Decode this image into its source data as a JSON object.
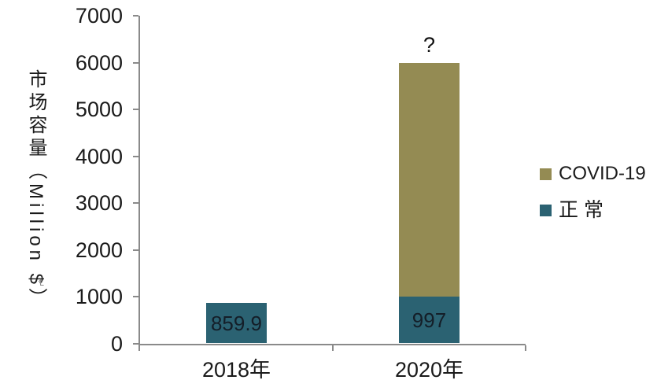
{
  "page": {
    "background": "#ffffff"
  },
  "chart_data": {
    "type": "bar",
    "stacked": true,
    "title": "",
    "xlabel": "",
    "ylabel": "市场容量（Million $）",
    "ylabel_footnote_mark": "↵",
    "ylim": [
      0,
      7000
    ],
    "ytick_step": 1000,
    "yticks": [
      "0",
      "1000",
      "2000",
      "3000",
      "4000",
      "5000",
      "6000",
      "7000"
    ],
    "grid": false,
    "legend_position": "right",
    "categories": [
      "2018年",
      "2020年"
    ],
    "series": [
      {
        "name": "正常",
        "color": "#2b6272",
        "values": [
          859.9,
          997
        ],
        "data_labels": [
          "859.9",
          "997"
        ]
      },
      {
        "name": "COVID-19",
        "color": "#948b53",
        "values": [
          0,
          5003
        ],
        "data_labels": [
          "",
          ""
        ],
        "note": "2020 COVID-19 segment unlabeled in source; stack top reaches ~6000 (read from axis), labeled with ? above bar"
      }
    ],
    "annotations": [
      {
        "text": "?",
        "category_index": 1,
        "placement": "above-bar-top"
      }
    ],
    "axis_color": "#8a8a8a",
    "tick_label_color": "#1a1a1a",
    "data_label_color": "#141e28"
  },
  "legend": {
    "entries": [
      {
        "label": "COVID-19",
        "color": "#948b53"
      },
      {
        "label": "正常",
        "color": "#2b6272"
      }
    ]
  }
}
